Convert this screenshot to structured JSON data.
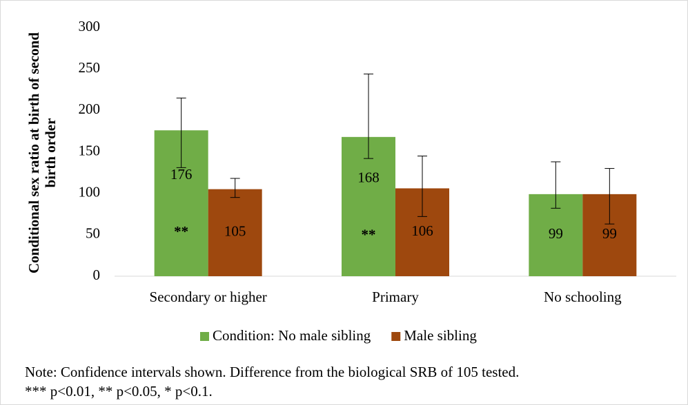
{
  "chart_data": {
    "type": "bar",
    "y_label_lines": [
      "Conditional sex ratio at birth of second",
      "birth order"
    ],
    "categories": [
      "Secondary or higher",
      "Primary",
      "No schooling"
    ],
    "series": [
      {
        "name": "Condition: No male sibling",
        "color": "#70ad47",
        "values": [
          176,
          168,
          99
        ],
        "ci_low": [
          131,
          142,
          82
        ],
        "ci_high": [
          215,
          244,
          138
        ],
        "annotations": [
          "**",
          "**",
          null
        ]
      },
      {
        "name": "Male sibling",
        "color": "#9e480e",
        "values": [
          105,
          106,
          99
        ],
        "ci_low": [
          95,
          72,
          63
        ],
        "ci_high": [
          118,
          145,
          130
        ]
      }
    ],
    "ylim": [
      0,
      300
    ],
    "yticks": [
      0,
      50,
      100,
      150,
      200,
      250,
      300
    ],
    "grid": false,
    "legend": "bottom",
    "note_lines": [
      "Note: Confidence intervals shown. Difference from the biological SRB of 105 tested.",
      "*** p<0.01, ** p<0.05, * p<0.1."
    ]
  }
}
